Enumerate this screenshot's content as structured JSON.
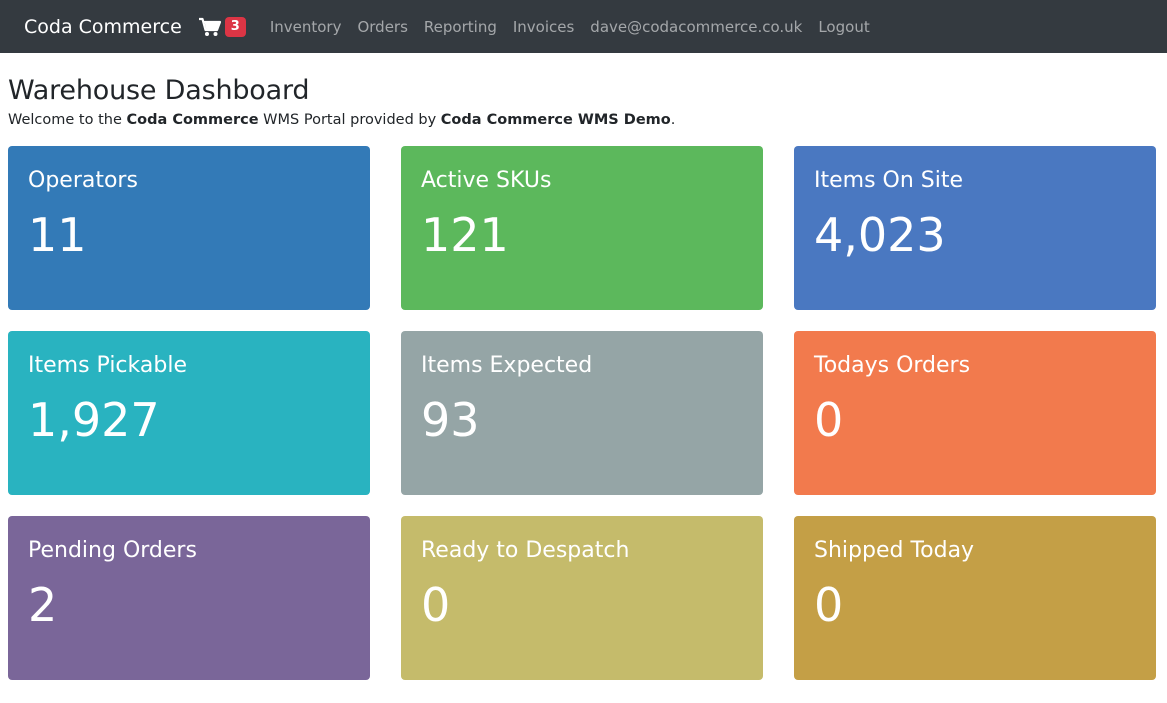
{
  "nav": {
    "brand": "Coda Commerce",
    "cart_count": "3",
    "links": [
      "Inventory",
      "Orders",
      "Reporting",
      "Invoices",
      "dave@codacommerce.co.uk",
      "Logout"
    ]
  },
  "page": {
    "title": "Warehouse Dashboard",
    "welcome_prefix": "Welcome to the ",
    "welcome_company": "Coda Commerce",
    "welcome_middle": " WMS Portal provided by ",
    "welcome_provider": "Coda Commerce WMS Demo",
    "welcome_suffix": "."
  },
  "cards": [
    {
      "label": "Operators",
      "value": "11",
      "color": "#337ab7"
    },
    {
      "label": "Active SKUs",
      "value": "121",
      "color": "#5cb85c"
    },
    {
      "label": "Items On Site",
      "value": "4,023",
      "color": "#4a78c1"
    },
    {
      "label": "Items Pickable",
      "value": "1,927",
      "color": "#29b3c0"
    },
    {
      "label": "Items Expected",
      "value": "93",
      "color": "#95a5a6"
    },
    {
      "label": "Todays Orders",
      "value": "0",
      "color": "#f27a4d"
    },
    {
      "label": "Pending Orders",
      "value": "2",
      "color": "#7a6699"
    },
    {
      "label": "Ready to Despatch",
      "value": "0",
      "color": "#c5bb6b"
    },
    {
      "label": "Shipped Today",
      "value": "0",
      "color": "#c49f46"
    }
  ]
}
